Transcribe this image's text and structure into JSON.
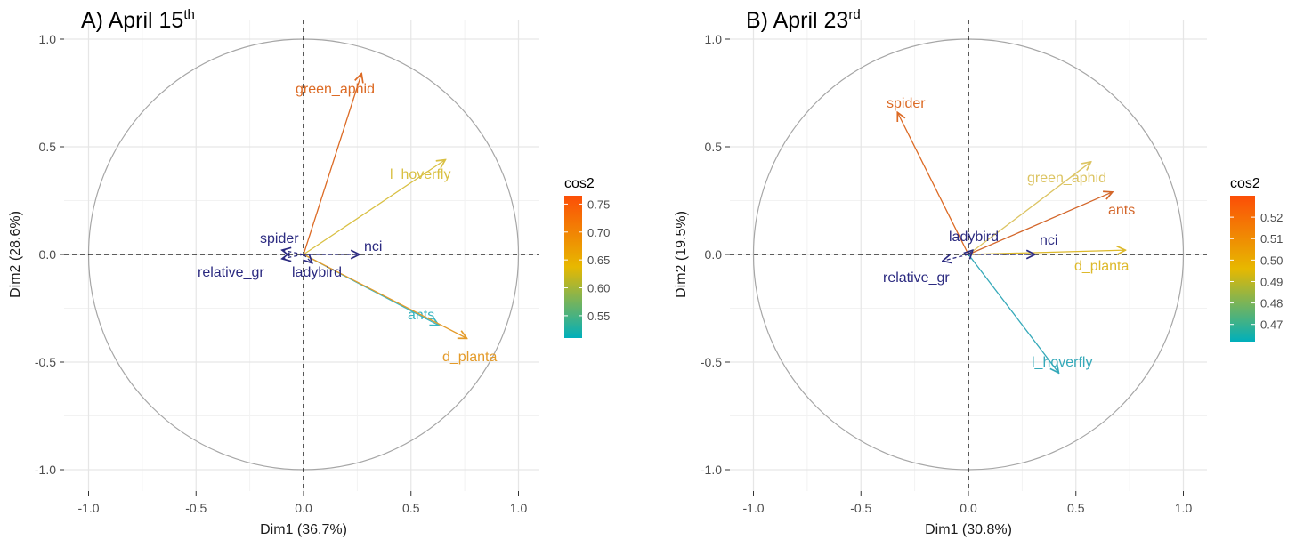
{
  "chart_data": [
    {
      "type": "scatter",
      "subtype": "pca-variables-correlation-circle",
      "title": "A) April 15",
      "title_sup": "th",
      "xlabel": "Dim1 (36.7%)",
      "ylabel": "Dim2 (28.6%)",
      "xlim": [
        -1.0,
        1.0
      ],
      "ylim": [
        -1.0,
        1.0
      ],
      "xticks": [
        "-1.0",
        "-0.5",
        "0.0",
        "0.5",
        "1.0"
      ],
      "yticks": [
        "-1.0",
        "-0.5",
        "0.0",
        "0.5",
        "1.0"
      ],
      "grid": true,
      "legend": {
        "title": "cos2",
        "placement": "right",
        "min": 0.51,
        "max": 0.765,
        "ticks": [
          "0.75",
          "0.70",
          "0.65",
          "0.60",
          "0.55"
        ],
        "colors_low_to_high": [
          "#00AFBB",
          "#E7B800",
          "#FC4E07"
        ]
      },
      "variables": [
        {
          "name": "green_aphid",
          "x": 0.27,
          "y": 0.84,
          "color": "#DC6A24",
          "cos2_style": "high"
        },
        {
          "name": "l_hoverfly",
          "x": 0.66,
          "y": 0.44,
          "color": "#D9C043",
          "cos2_style": "mid"
        },
        {
          "name": "ants",
          "x": 0.63,
          "y": -0.33,
          "color": "#3AB5C0",
          "cos2_style": "low"
        },
        {
          "name": "d_planta",
          "x": 0.76,
          "y": -0.39,
          "color": "#E49B2A",
          "cos2_style": "mid-high"
        },
        {
          "name": "spider",
          "x": -0.1,
          "y": 0.02,
          "color": "#2B2A80",
          "cos2_style": "low-contrib"
        },
        {
          "name": "nci",
          "x": 0.26,
          "y": 0.0,
          "color": "#2B2A80",
          "cos2_style": "low-contrib"
        },
        {
          "name": "relative_gr",
          "x": -0.1,
          "y": -0.02,
          "color": "#2B2A80",
          "cos2_style": "low-contrib"
        },
        {
          "name": "ladybird",
          "x": 0.04,
          "y": -0.04,
          "color": "#2B2A80",
          "cos2_style": "low-contrib"
        }
      ]
    },
    {
      "type": "scatter",
      "subtype": "pca-variables-correlation-circle",
      "title": "B) April 23",
      "title_sup": "rd",
      "xlabel": "Dim1 (30.8%)",
      "ylabel": "Dim2 (19.5%)",
      "xlim": [
        -1.0,
        1.0
      ],
      "ylim": [
        -1.0,
        1.0
      ],
      "xticks": [
        "-1.0",
        "-0.5",
        "0.0",
        "0.5",
        "1.0"
      ],
      "yticks": [
        "-1.0",
        "-0.5",
        "0.0",
        "0.5",
        "1.0"
      ],
      "grid": true,
      "legend": {
        "title": "cos2",
        "placement": "right",
        "min": 0.462,
        "max": 0.53,
        "ticks": [
          "0.52",
          "0.51",
          "0.50",
          "0.49",
          "0.48",
          "0.47"
        ],
        "colors_low_to_high": [
          "#00AFBB",
          "#E7B800",
          "#FC4E07"
        ]
      },
      "variables": [
        {
          "name": "spider",
          "x": -0.33,
          "y": 0.66,
          "color": "#DC6A24",
          "cos2_style": "high"
        },
        {
          "name": "green_aphid",
          "x": 0.57,
          "y": 0.43,
          "color": "#DCC463",
          "cos2_style": "mid"
        },
        {
          "name": "ants",
          "x": 0.67,
          "y": 0.29,
          "color": "#D3662A",
          "cos2_style": "high"
        },
        {
          "name": "d_planta",
          "x": 0.73,
          "y": 0.02,
          "color": "#DDB92B",
          "cos2_style": "mid"
        },
        {
          "name": "l_hoverfly",
          "x": 0.42,
          "y": -0.55,
          "color": "#35A9B9",
          "cos2_style": "low"
        },
        {
          "name": "nci",
          "x": 0.31,
          "y": 0.0,
          "color": "#2B2A80",
          "cos2_style": "low-contrib"
        },
        {
          "name": "ladybird",
          "x": 0.02,
          "y": 0.02,
          "color": "#2B2A80",
          "cos2_style": "low-contrib"
        },
        {
          "name": "relative_gr",
          "x": -0.12,
          "y": -0.03,
          "color": "#2B2A80",
          "cos2_style": "low-contrib"
        }
      ]
    }
  ]
}
